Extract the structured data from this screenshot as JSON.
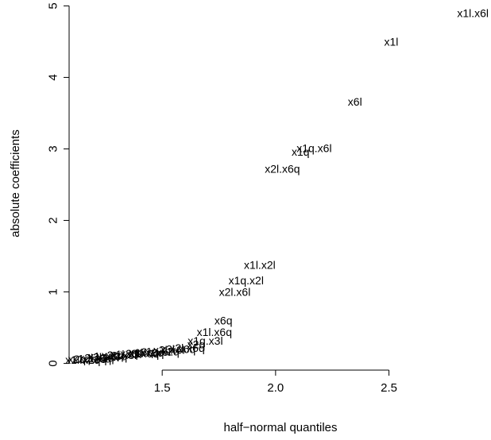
{
  "chart_data": {
    "type": "scatter",
    "title": "",
    "xlabel": "half−normal quantiles",
    "ylabel": "absolute coefficients",
    "xlim": [
      1.1,
      2.95
    ],
    "ylim": [
      -0.06,
      5.06
    ],
    "grid": false,
    "x_ticks": [
      {
        "value": 1.5,
        "label": "1.5"
      },
      {
        "value": 2.0,
        "label": "2.0"
      },
      {
        "value": 2.5,
        "label": "2.5"
      }
    ],
    "y_ticks": [
      {
        "value": 0,
        "label": "0"
      },
      {
        "value": 1,
        "label": "1"
      },
      {
        "value": 2,
        "label": "2"
      },
      {
        "value": 3,
        "label": "3"
      },
      {
        "value": 4,
        "label": "4"
      },
      {
        "value": 5,
        "label": "5"
      }
    ],
    "points": [
      {
        "x": 2.87,
        "y": 4.9,
        "label": "x1l.x6l"
      },
      {
        "x": 2.51,
        "y": 4.5,
        "label": "x1l"
      },
      {
        "x": 2.35,
        "y": 3.66,
        "label": "x6l"
      },
      {
        "x": 2.17,
        "y": 3.01,
        "label": "x1q.x6l"
      },
      {
        "x": 2.11,
        "y": 2.96,
        "label": "x1q"
      },
      {
        "x": 2.03,
        "y": 2.72,
        "label": "x2l.x6q"
      },
      {
        "x": 1.93,
        "y": 1.38,
        "label": "x1l.x2l"
      },
      {
        "x": 1.87,
        "y": 1.16,
        "label": "x1q.x2l"
      },
      {
        "x": 1.82,
        "y": 1.0,
        "label": "x2l.x6l"
      },
      {
        "x": 1.77,
        "y": 0.6,
        "label": "x6q"
      },
      {
        "x": 1.73,
        "y": 0.44,
        "label": "x1l.x6q"
      },
      {
        "x": 1.69,
        "y": 0.32,
        "label": "x1q.x3l"
      },
      {
        "x": 1.65,
        "y": 0.27,
        "label": "x2q"
      },
      {
        "x": 1.61,
        "y": 0.22,
        "label": "x2l.x6q"
      },
      {
        "x": 1.57,
        "y": 0.2,
        "label": "x3l.x6q"
      },
      {
        "x": 1.53,
        "y": 0.19,
        "label": "x2l.x6l"
      },
      {
        "x": 1.49,
        "y": 0.17,
        "label": "x1q.x2q"
      },
      {
        "x": 1.46,
        "y": 0.16,
        "label": "x3q.x6l"
      },
      {
        "x": 1.43,
        "y": 0.15,
        "label": "x1l.x3q"
      },
      {
        "x": 1.4,
        "y": 0.14,
        "label": "x2q.x6q"
      },
      {
        "x": 1.37,
        "y": 0.14,
        "label": "x3l"
      },
      {
        "x": 1.34,
        "y": 0.13,
        "label": "x1l.x3l"
      },
      {
        "x": 1.31,
        "y": 0.12,
        "label": "x2q.x3l"
      },
      {
        "x": 1.29,
        "y": 0.11,
        "label": "x3q"
      },
      {
        "x": 1.26,
        "y": 0.1,
        "label": "x1q.x3q"
      },
      {
        "x": 1.24,
        "y": 0.09,
        "label": "x3l.x6l"
      },
      {
        "x": 1.21,
        "y": 0.08,
        "label": "x2l.x3q"
      },
      {
        "x": 1.19,
        "y": 0.07,
        "label": "x1q.x6q"
      },
      {
        "x": 1.17,
        "y": 0.06,
        "label": "x2q.x3q"
      },
      {
        "x": 1.15,
        "y": 0.05,
        "label": "x1l.x2q"
      }
    ]
  }
}
